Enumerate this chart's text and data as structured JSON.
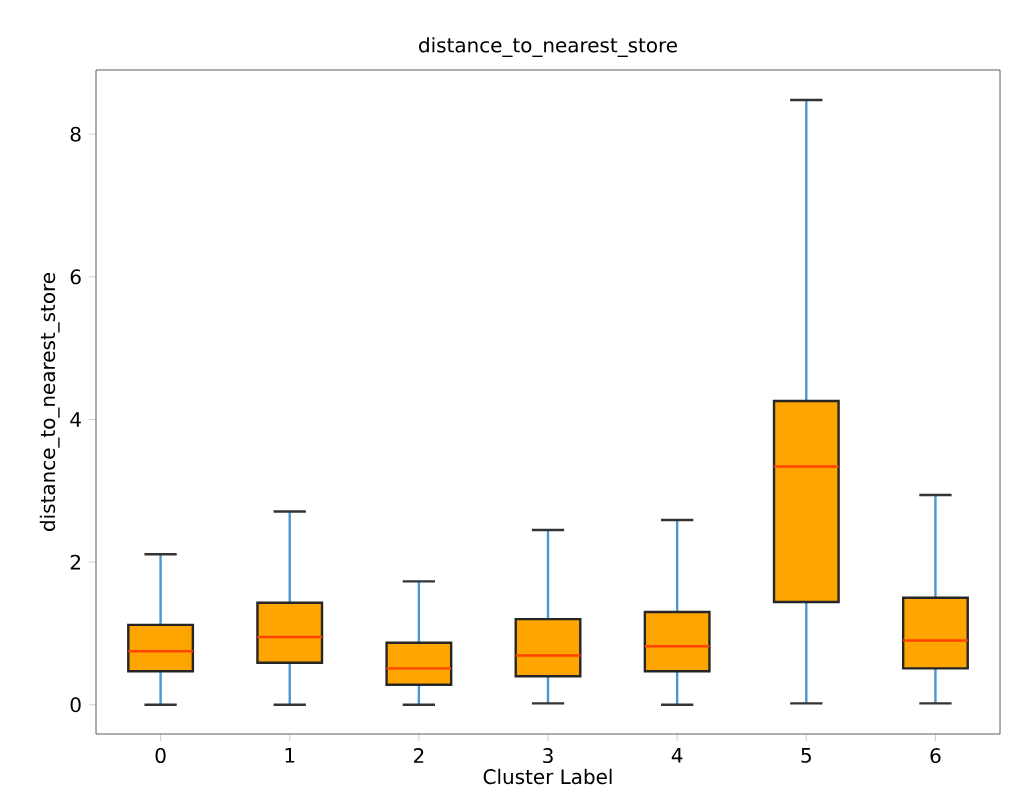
{
  "chart_data": {
    "type": "box",
    "title": "distance_to_nearest_store",
    "xlabel": "Cluster Label",
    "ylabel": "distance_to_nearest_store",
    "categories": [
      "0",
      "1",
      "2",
      "3",
      "4",
      "5",
      "6"
    ],
    "color": "#ffa500",
    "boxes": [
      {
        "low": 0,
        "q1": 0.47,
        "median": 0.75,
        "q3": 1.12,
        "high": 2.11
      },
      {
        "low": 0,
        "q1": 0.59,
        "median": 0.95,
        "q3": 1.43,
        "high": 2.71
      },
      {
        "low": 0,
        "q1": 0.28,
        "median": 0.51,
        "q3": 0.87,
        "high": 1.73
      },
      {
        "low": 0.02,
        "q1": 0.4,
        "median": 0.69,
        "q3": 1.2,
        "high": 2.45
      },
      {
        "low": 0,
        "q1": 0.47,
        "median": 0.82,
        "q3": 1.3,
        "high": 2.59
      },
      {
        "low": 0.02,
        "q1": 1.44,
        "median": 3.34,
        "q3": 4.26,
        "high": 8.48
      },
      {
        "low": 0.02,
        "q1": 0.51,
        "median": 0.9,
        "q3": 1.5,
        "high": 2.94
      }
    ],
    "ylim": [
      -0.41,
      8.9
    ],
    "yticks": [
      0,
      2,
      4,
      6,
      8
    ],
    "grid": false
  }
}
